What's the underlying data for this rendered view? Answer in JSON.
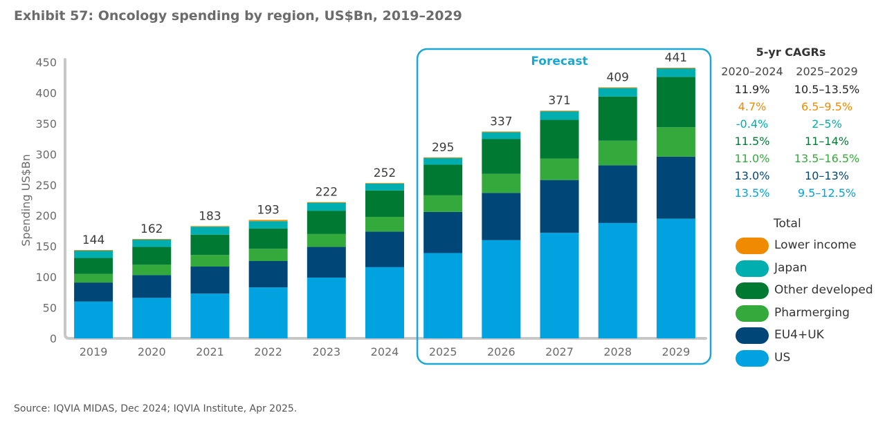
{
  "title": "Exhibit 57: Oncology spending by region, US$Bn, 2019–2029",
  "source": "Source: IQVIA MIDAS, Dec 2024; IQVIA Institute, Apr 2025.",
  "forecast_label": "Forecast",
  "colors": {
    "US": "#00a3e0",
    "EU4+UK": "#004677",
    "Pharmerging": "#34a93c",
    "Other developed": "#007a33",
    "Japan": "#00aeb0",
    "Lower income": "#f08a00",
    "forecast_box": "#1aa7d6"
  },
  "cagr": {
    "title": "5-yr CAGRs",
    "headers": [
      "2020–2024",
      "2025–2029"
    ],
    "rows": [
      {
        "a": "11.9%",
        "b": "10.5–13.5%",
        "color": "#222222"
      },
      {
        "a": "4.7%",
        "b": "6.5–9.5%",
        "color": "#f08a00"
      },
      {
        "a": "-0.4%",
        "b": "2–5%",
        "color": "#00aeb0"
      },
      {
        "a": "11.5%",
        "b": "11–14%",
        "color": "#007a33"
      },
      {
        "a": "11.0%",
        "b": "13.5–16.5%",
        "color": "#34a93c"
      },
      {
        "a": "13.0%",
        "b": "10–13%",
        "color": "#004677"
      },
      {
        "a": "13.5%",
        "b": "9.5–12.5%",
        "color": "#00a3e0"
      }
    ]
  },
  "legend": {
    "title": "Total",
    "items": [
      "Lower income",
      "Japan",
      "Other developed",
      "Pharmerging",
      "EU4+UK",
      "US"
    ]
  },
  "chart_data": {
    "type": "bar",
    "stacked": true,
    "title": "Exhibit 57: Oncology spending by region, US$Bn, 2019–2029",
    "ylabel": "Spending US$Bn",
    "ylim": [
      0,
      450
    ],
    "yticks": [
      0,
      50,
      100,
      150,
      200,
      250,
      300,
      350,
      400,
      450
    ],
    "categories": [
      "2019",
      "2020",
      "2021",
      "2022",
      "2023",
      "2024",
      "2025",
      "2026",
      "2027",
      "2028",
      "2029"
    ],
    "forecast_categories": [
      "2025",
      "2026",
      "2027",
      "2028",
      "2029"
    ],
    "totals": [
      144,
      162,
      183,
      193,
      222,
      252,
      295,
      337,
      371,
      409,
      441
    ],
    "series": [
      {
        "name": "US",
        "values": [
          60,
          66,
          73,
          83,
          99,
          116,
          139,
          160,
          172,
          188,
          195
        ]
      },
      {
        "name": "EU4+UK",
        "values": [
          31,
          37,
          44,
          43,
          50,
          58,
          67,
          77,
          86,
          94,
          101
        ]
      },
      {
        "name": "Pharmerging",
        "values": [
          14,
          17,
          19,
          20,
          21,
          24,
          27,
          31,
          35,
          40,
          48
        ]
      },
      {
        "name": "Other developed",
        "values": [
          26,
          29,
          33,
          33,
          38,
          43,
          50,
          57,
          63,
          72,
          82
        ]
      },
      {
        "name": "Japan",
        "values": [
          12,
          12,
          13,
          12,
          13,
          11,
          11,
          11,
          14,
          14,
          14
        ]
      },
      {
        "name": "Lower income",
        "values": [
          1,
          1,
          1,
          2,
          1,
          1,
          1,
          1,
          1,
          1,
          1
        ]
      }
    ]
  }
}
